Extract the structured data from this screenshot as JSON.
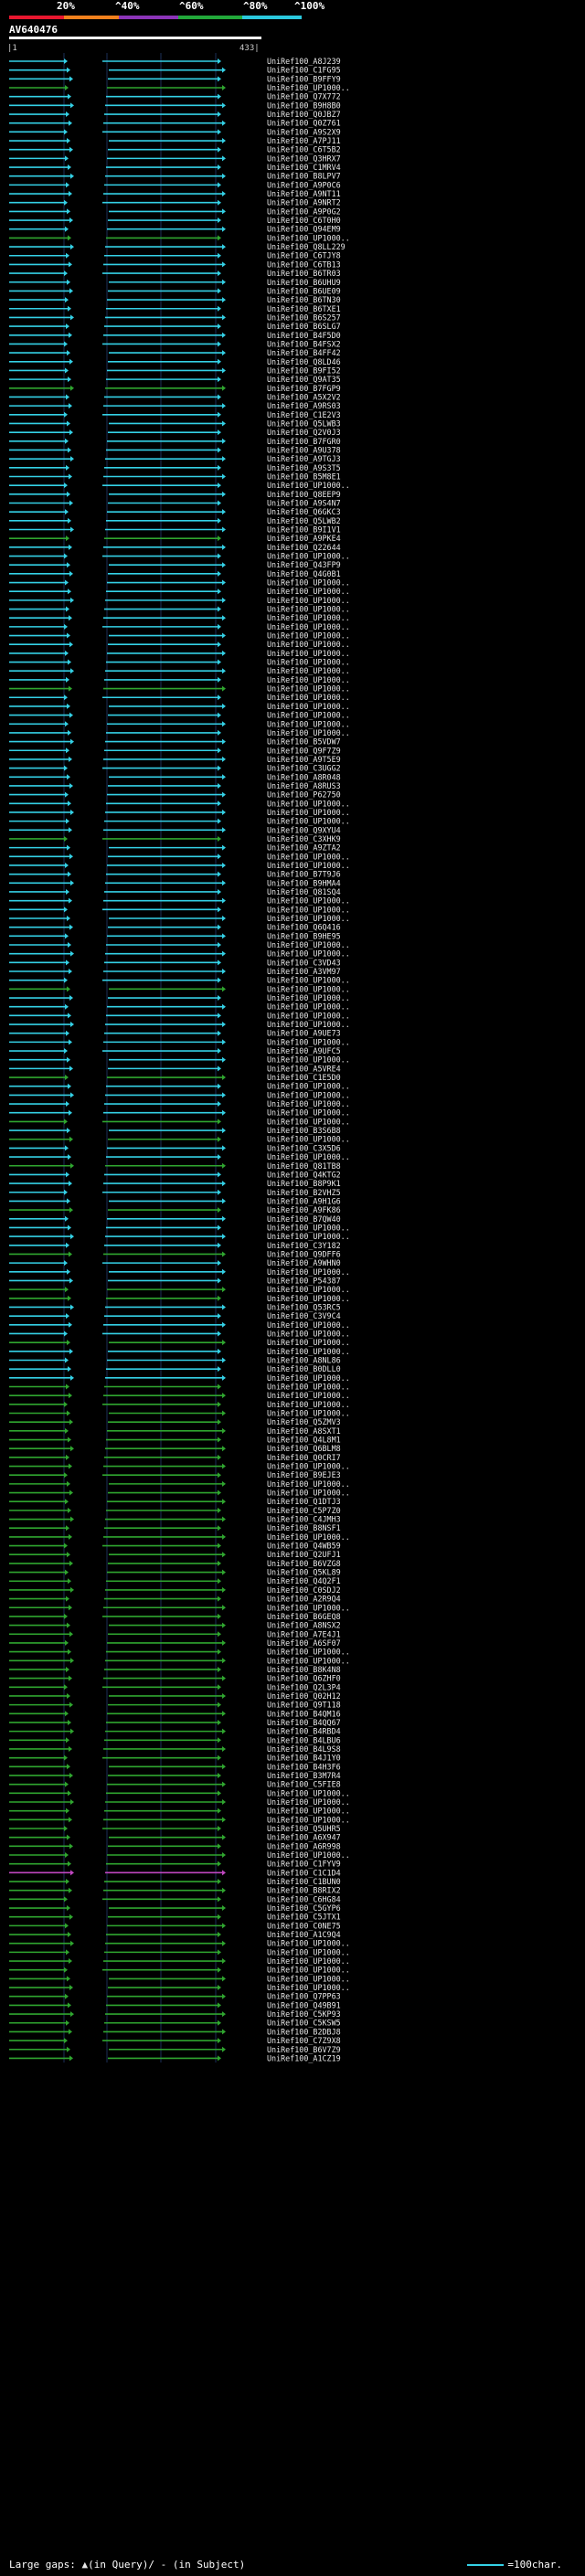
{
  "header": {
    "percent_ticks": [
      "20%",
      "^40%",
      "^60%",
      "^80%",
      "^100%"
    ],
    "band_colors": [
      "#e8172f",
      "#f2811d",
      "#8c34b8",
      "#22a83a",
      "#2bc8dd"
    ],
    "query_name": "AV640476",
    "ruler_start": "1",
    "ruler_end": "433"
  },
  "footer": {
    "large_gaps_label": "Large gaps: ",
    "large_gaps_legend": "(in Query)/ - (in Subject)",
    "scale_label": "=100char."
  },
  "colors": {
    "cyan": "#34d1e6",
    "green": "#2fa62f",
    "magenta": "#c147c1",
    "grid": "#1d2f57",
    "text": "#e8e8e8"
  },
  "hit_labels": [
    "UniRef100_A8J239",
    "UniRef100_C1FG95",
    "UniRef100_B9FFY9",
    "UniRef100_UP1000..",
    "UniRef100_Q7X772",
    "UniRef100_B9H8B0",
    "UniRef100_Q0JBZ7",
    "UniRef100_Q0Z761",
    "UniRef100_A9S2X9",
    "UniRef100_A7PJ11",
    "UniRef100_C6T5B2",
    "UniRef100_Q3HRX7",
    "UniRef100_C1MRV4",
    "UniRef100_B8LPV7",
    "UniRef100_A9P0C6",
    "UniRef100_A9NT11",
    "UniRef100_A9NRT2",
    "UniRef100_A9P0G2",
    "UniRef100_C6T0H0",
    "UniRef100_Q94EM9",
    "UniRef100_UP1000..",
    "UniRef100_Q8LL229",
    "UniRef100_C6TJY8",
    "UniRef100_C6TB13",
    "UniRef100_B6TR03",
    "UniRef100_B6UHU9",
    "UniRef100_B6UE09",
    "UniRef100_B6TN30",
    "UniRef100_B6TXE1",
    "UniRef100_B6S257",
    "UniRef100_B6SLG7",
    "UniRef100_B4F5D0",
    "UniRef100_B4FSX2",
    "UniRef100_B4FF42",
    "UniRef100_Q8LD46",
    "UniRef100_B9FI52",
    "UniRef100_Q9AT35",
    "UniRef100_B7FGP9",
    "UniRef100_A5X2V2",
    "UniRef100_A9RS03",
    "UniRef100_C1E2V3",
    "UniRef100_Q5LWB3",
    "UniRef100_Q2V0J3",
    "UniRef100_B7FGR0",
    "UniRef100_A9U378",
    "UniRef100_A9TGJ3",
    "UniRef100_A9S3T5",
    "UniRef100_B5M8E1",
    "UniRef100_UP1000..",
    "UniRef100_Q8EEP9",
    "UniRef100_A9S4N7",
    "UniRef100_Q6GKC3",
    "UniRef100_Q5LWB2",
    "UniRef100_B9I1V1",
    "UniRef100_A9PKE4",
    "UniRef100_Q22644",
    "UniRef100_UP1000..",
    "UniRef100_Q43FP9",
    "UniRef100_Q4G0B1",
    "UniRef100_UP1000..",
    "UniRef100_UP1000..",
    "UniRef100_UP1000..",
    "UniRef100_UP1000..",
    "UniRef100_UP1000..",
    "UniRef100_UP1000..",
    "UniRef100_UP1000..",
    "UniRef100_UP1000..",
    "UniRef100_UP1000..",
    "UniRef100_UP1000..",
    "UniRef100_UP1000..",
    "UniRef100_UP1000..",
    "UniRef100_UP1000..",
    "UniRef100_UP1000..",
    "UniRef100_UP1000..",
    "UniRef100_UP1000..",
    "UniRef100_UP1000..",
    "UniRef100_UP1000..",
    "UniRef100_B5VDW7",
    "UniRef100_Q9F7Z9",
    "UniRef100_A9T5E9",
    "UniRef100_C3UGG2",
    "UniRef100_A8R048",
    "UniRef100_A8RUS3",
    "UniRef100_P62750",
    "UniRef100_UP1000..",
    "UniRef100_UP1000..",
    "UniRef100_UP1000..",
    "UniRef100_Q9XYU4",
    "UniRef100_C3XHK9",
    "UniRef100_A9ZTA2",
    "UniRef100_UP1000..",
    "UniRef100_UP1000..",
    "UniRef100_B7T9J6",
    "UniRef100_B9HMA4",
    "UniRef100_Q81SQ4",
    "UniRef100_UP1000..",
    "UniRef100_UP1000..",
    "UniRef100_UP1000..",
    "UniRef100_Q6Q416",
    "UniRef100_B9HE95",
    "UniRef100_UP1000..",
    "UniRef100_UP1000..",
    "UniRef100_C3VD43",
    "UniRef100_A3VM97",
    "UniRef100_UP1000..",
    "UniRef100_UP1000..",
    "UniRef100_UP1000..",
    "UniRef100_UP1000..",
    "UniRef100_UP1000..",
    "UniRef100_UP1000..",
    "UniRef100_A9UE73",
    "UniRef100_UP1000..",
    "UniRef100_A9UFC5",
    "UniRef100_UP1000..",
    "UniRef100_A5VRE4",
    "UniRef100_C1E5D0",
    "UniRef100_UP1000..",
    "UniRef100_UP1000..",
    "UniRef100_UP1000..",
    "UniRef100_UP1000..",
    "UniRef100_UP1000..",
    "UniRef100_B3S6B8",
    "UniRef100_UP1000..",
    "UniRef100_C3X5D6",
    "UniRef100_UP1000..",
    "UniRef100_Q81TB8",
    "UniRef100_Q4KTG2",
    "UniRef100_B8P9K1",
    "UniRef100_B2VHZ5",
    "UniRef100_A9H1G6",
    "UniRef100_A9FK86",
    "UniRef100_B7QW40",
    "UniRef100_UP1000..",
    "UniRef100_UP1000..",
    "UniRef100_C3Y182",
    "UniRef100_Q9DFF6",
    "UniRef100_A9WHN0",
    "UniRef100_UP1000..",
    "UniRef100_P54387",
    "UniRef100_UP1000..",
    "UniRef100_UP1000..",
    "UniRef100_Q53RC5",
    "UniRef100_C3V9C4",
    "UniRef100_UP1000..",
    "UniRef100_UP1000..",
    "UniRef100_UP1000..",
    "UniRef100_UP1000..",
    "UniRef100_A8NL86",
    "UniRef100_B0DLL0",
    "UniRef100_UP1000..",
    "UniRef100_UP1000..",
    "UniRef100_UP1000..",
    "UniRef100_UP1000..",
    "UniRef100_UP1000..",
    "UniRef100_Q5ZMV3",
    "UniRef100_A8SXT1",
    "UniRef100_Q4L8M1",
    "UniRef100_Q6BLM8",
    "UniRef100_Q0CRI7",
    "UniRef100_UP1000..",
    "UniRef100_B9EJE3",
    "UniRef100_UP1000..",
    "UniRef100_UP1000..",
    "UniRef100_Q1DTJ3",
    "UniRef100_C5P7Z0",
    "UniRef100_C4JMH3",
    "UniRef100_B8NSF1",
    "UniRef100_UP1000..",
    "UniRef100_Q4WB59",
    "UniRef100_Q2UFJ1",
    "UniRef100_B6VZG8",
    "UniRef100_Q5KL89",
    "UniRef100_Q4Q2F1",
    "UniRef100_C0SDJ2",
    "UniRef100_A2R9Q4",
    "UniRef100_UP1000..",
    "UniRef100_B6GEQ8",
    "UniRef100_A8NSX2",
    "UniRef100_A7E4J1",
    "UniRef100_A6SF07",
    "UniRef100_UP1000..",
    "UniRef100_UP1000..",
    "UniRef100_B8K4N8",
    "UniRef100_Q6ZHF0",
    "UniRef100_Q2L3P4",
    "UniRef100_Q02H12",
    "UniRef100_Q9T118",
    "UniRef100_B4QM16",
    "UniRef100_B4QQ67",
    "UniRef100_B4RBD4",
    "UniRef100_B4LBU6",
    "UniRef100_B4L9S8",
    "UniRef100_B4J1Y0",
    "UniRef100_B4H3F6",
    "UniRef100_B3M7R4",
    "UniRef100_C5FIE8",
    "UniRef100_UP1000..",
    "UniRef100_UP1000..",
    "UniRef100_UP1000..",
    "UniRef100_UP1000..",
    "UniRef100_Q5UHR5",
    "UniRef100_A6X947",
    "UniRef100_A6R998",
    "UniRef100_UP1000..",
    "UniRef100_C1FYV9",
    "UniRef100_C1C1D4",
    "UniRef100_C1BUN0",
    "UniRef100_B8RIX2",
    "UniRef100_C6HG84",
    "UniRef100_C5GYP6",
    "UniRef100_C5JTX1",
    "UniRef100_C0NE75",
    "UniRef100_A1C9Q4",
    "UniRef100_UP1000..",
    "UniRef100_UP1000..",
    "UniRef100_UP1000..",
    "UniRef100_UP1000..",
    "UniRef100_UP1000..",
    "UniRef100_UP1000..",
    "UniRef100_Q7PP63",
    "UniRef100_Q49B91",
    "UniRef100_C5KP93",
    "UniRef100_C5KSW5",
    "UniRef100_B2DBJ8",
    "UniRef100_C7Z9X8",
    "UniRef100_B6V7Z9",
    "UniRef100_A1CZ19"
  ]
}
